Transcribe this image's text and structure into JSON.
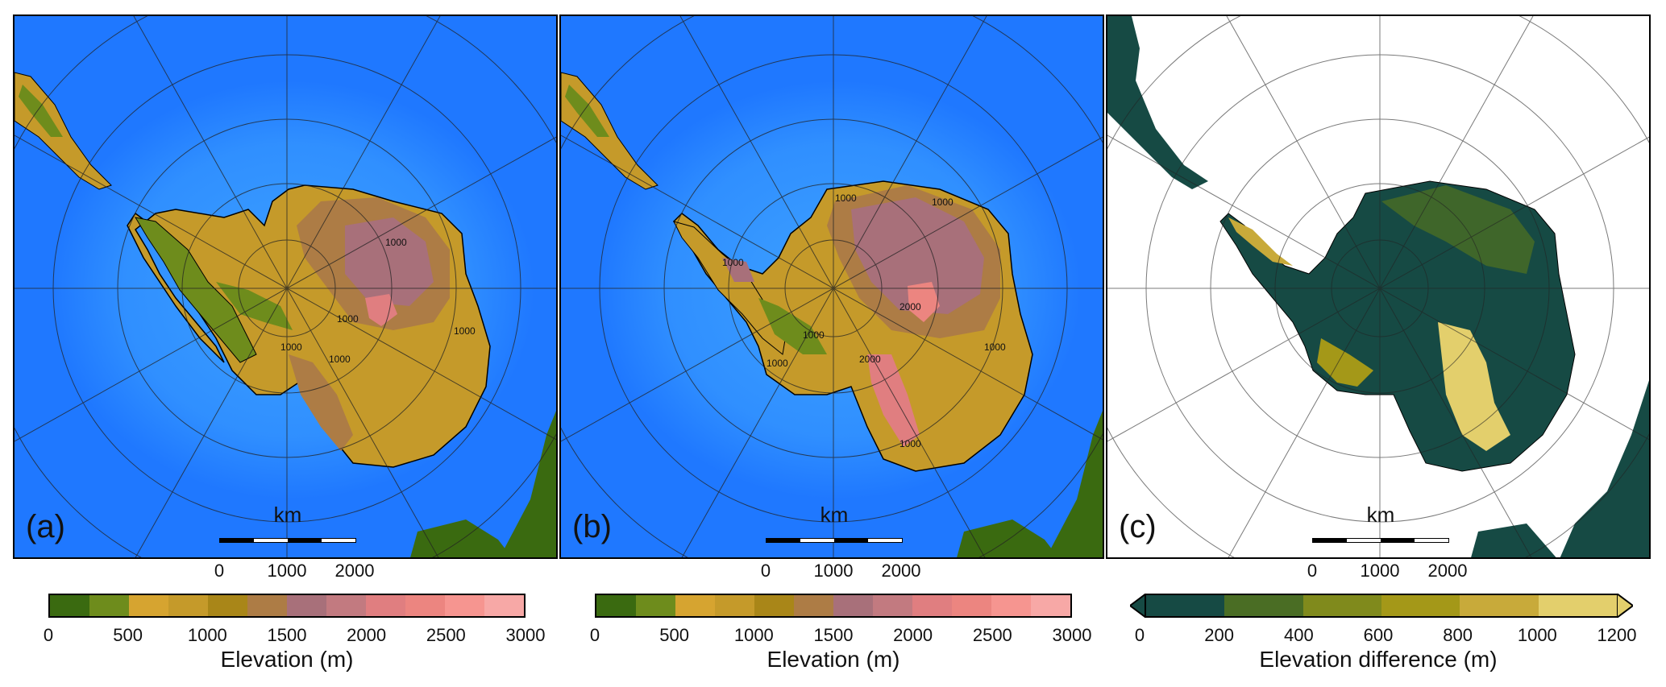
{
  "panels": [
    {
      "letter": "(a)",
      "scale_title": "km",
      "scale_ticks": [
        "0",
        "1000",
        "2000"
      ],
      "contour_labels": [
        "1000",
        "1000",
        "1000",
        "1000",
        "1000"
      ]
    },
    {
      "letter": "(b)",
      "scale_title": "km",
      "scale_ticks": [
        "0",
        "1000",
        "2000"
      ],
      "contour_labels": [
        "1000",
        "1000",
        "1000",
        "2000",
        "2000",
        "1000",
        "1000",
        "1000",
        "1000"
      ]
    },
    {
      "letter": "(c)",
      "scale_title": "km",
      "scale_ticks": [
        "0",
        "1000",
        "2000"
      ],
      "contour_labels": []
    }
  ],
  "colorbars": [
    {
      "label": "Elevation (m)",
      "ticks": [
        "0",
        "500",
        "1000",
        "1500",
        "2000",
        "2500",
        "3000"
      ],
      "colors": [
        "#3a6a10",
        "#6e8c1c",
        "#d6a430",
        "#c59a2a",
        "#a98618",
        "#ad7c45",
        "#a8707a",
        "#c27a80",
        "#e07e80",
        "#ec8580",
        "#f69590",
        "#f7a8a6"
      ]
    },
    {
      "label": "Elevation (m)",
      "ticks": [
        "0",
        "500",
        "1000",
        "1500",
        "2000",
        "2500",
        "3000"
      ],
      "colors": [
        "#3a6a10",
        "#6e8c1c",
        "#d6a430",
        "#c59a2a",
        "#a98618",
        "#ad7c45",
        "#a8707a",
        "#c27a80",
        "#e07e80",
        "#ec8580",
        "#f69590",
        "#f7a8a6"
      ]
    },
    {
      "label": "Elevation difference (m)",
      "ticks": [
        "0",
        "200",
        "400",
        "600",
        "800",
        "1000",
        "1200"
      ],
      "colors": [
        "#164a44",
        "#4a6d24",
        "#808a1c",
        "#a49818",
        "#c8aa3a",
        "#e3cf6c"
      ]
    }
  ],
  "colors": {
    "ocean": "#1f78ff",
    "ocean_shallow": "#3aa0ff",
    "land_dark": "#245818",
    "blank": "#ffffff"
  }
}
